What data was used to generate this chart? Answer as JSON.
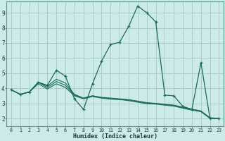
{
  "xlabel": "Humidex (Indice chaleur)",
  "background_color": "#cceaea",
  "grid_color": "#aacccc",
  "line_color": "#1a6b5a",
  "xlim": [
    -0.5,
    23.5
  ],
  "ylim": [
    1.5,
    9.75
  ],
  "xticks": [
    0,
    1,
    2,
    3,
    4,
    5,
    6,
    7,
    8,
    9,
    10,
    11,
    12,
    13,
    14,
    15,
    16,
    17,
    18,
    19,
    20,
    21,
    22,
    23
  ],
  "yticks": [
    2,
    3,
    4,
    5,
    6,
    7,
    8,
    9
  ],
  "series0": [
    3.9,
    3.6,
    3.75,
    4.4,
    4.2,
    5.2,
    4.8,
    3.3,
    2.6,
    4.3,
    5.8,
    6.9,
    7.05,
    8.1,
    9.45,
    9.0,
    8.4,
    3.55,
    3.5,
    2.8,
    2.6,
    5.7,
    2.0,
    2.0
  ],
  "series1": [
    3.9,
    3.6,
    3.75,
    4.4,
    4.15,
    4.6,
    4.35,
    3.6,
    3.35,
    3.5,
    3.4,
    3.35,
    3.3,
    3.25,
    3.15,
    3.05,
    3.0,
    2.95,
    2.88,
    2.75,
    2.62,
    2.5,
    2.05,
    2.0
  ],
  "series2": [
    3.9,
    3.6,
    3.75,
    4.4,
    4.05,
    4.45,
    4.2,
    3.55,
    3.35,
    3.5,
    3.38,
    3.32,
    3.28,
    3.22,
    3.12,
    3.02,
    2.98,
    2.92,
    2.85,
    2.72,
    2.6,
    2.48,
    2.03,
    2.0
  ],
  "series3": [
    3.9,
    3.6,
    3.75,
    4.3,
    3.95,
    4.3,
    4.05,
    3.5,
    3.3,
    3.45,
    3.35,
    3.28,
    3.25,
    3.18,
    3.08,
    2.98,
    2.95,
    2.88,
    2.82,
    2.68,
    2.55,
    2.45,
    2.0,
    2.0
  ]
}
